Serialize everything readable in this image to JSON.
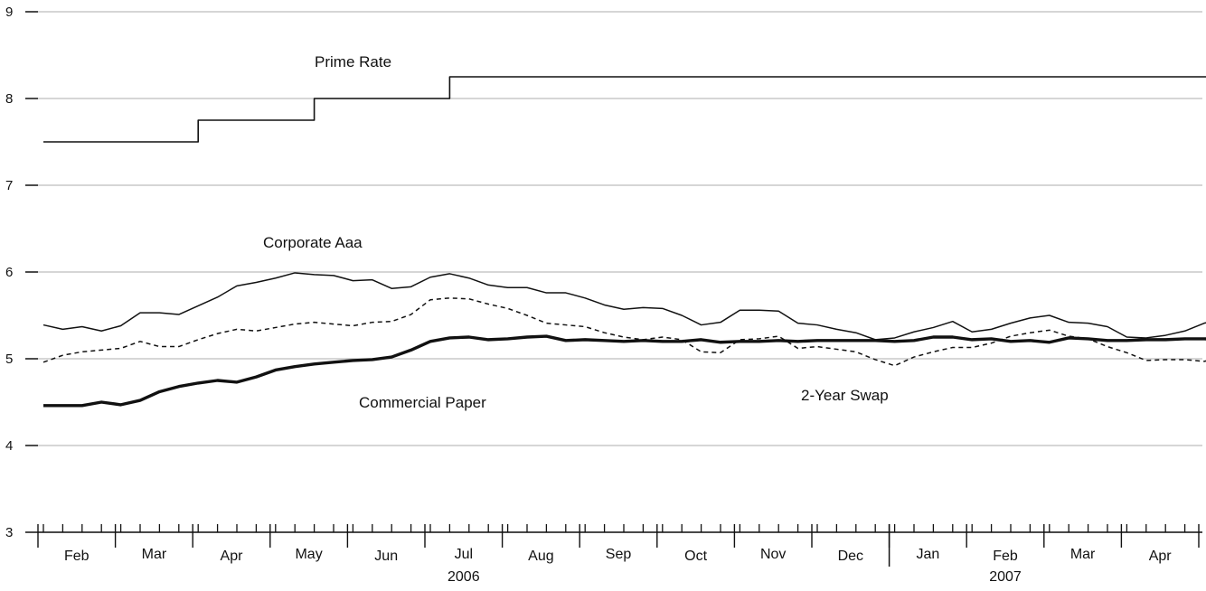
{
  "chart_data": {
    "type": "line",
    "title": "",
    "xlabel": "",
    "ylabel": "",
    "ylim": [
      3,
      9
    ],
    "yticks": [
      3,
      4,
      5,
      6,
      7,
      8,
      9
    ],
    "grid": "horizontal",
    "x_unit": "week",
    "months": [
      {
        "label": "Feb",
        "year_label": ""
      },
      {
        "label": "Mar",
        "year_label": ""
      },
      {
        "label": "Apr",
        "year_label": ""
      },
      {
        "label": "May",
        "year_label": ""
      },
      {
        "label": "Jun",
        "year_label": ""
      },
      {
        "label": "Jul",
        "year_label": "2006"
      },
      {
        "label": "Aug",
        "year_label": ""
      },
      {
        "label": "Sep",
        "year_label": ""
      },
      {
        "label": "Oct",
        "year_label": ""
      },
      {
        "label": "Nov",
        "year_label": ""
      },
      {
        "label": "Dec",
        "year_label": ""
      },
      {
        "label": "Jan",
        "year_label": ""
      },
      {
        "label": "Feb",
        "year_label": "2007"
      },
      {
        "label": "Mar",
        "year_label": ""
      },
      {
        "label": "Apr",
        "year_label": ""
      }
    ],
    "years": [
      "2006",
      "2007"
    ],
    "series": [
      {
        "name": "Prime Rate",
        "style": "step",
        "color": "#111111",
        "values": [
          7.5,
          7.5,
          7.5,
          7.5,
          7.5,
          7.5,
          7.5,
          7.5,
          7.75,
          7.75,
          7.75,
          7.75,
          7.75,
          7.75,
          8.0,
          8.0,
          8.0,
          8.0,
          8.0,
          8.0,
          8.0,
          8.25,
          8.25,
          8.25,
          8.25,
          8.25,
          8.25,
          8.25,
          8.25,
          8.25,
          8.25,
          8.25,
          8.25,
          8.25,
          8.25,
          8.25,
          8.25,
          8.25,
          8.25,
          8.25,
          8.25,
          8.25,
          8.25,
          8.25,
          8.25,
          8.25,
          8.25,
          8.25,
          8.25,
          8.25,
          8.25,
          8.25,
          8.25,
          8.25,
          8.25,
          8.25,
          8.25,
          8.25,
          8.25,
          8.25,
          8.25,
          8.25
        ]
      },
      {
        "name": "Corporate Aaa",
        "style": "thin",
        "color": "#111111",
        "values": [
          5.39,
          5.34,
          5.37,
          5.32,
          5.38,
          5.53,
          5.53,
          5.51,
          5.61,
          5.71,
          5.84,
          5.88,
          5.93,
          5.99,
          5.97,
          5.96,
          5.9,
          5.91,
          5.81,
          5.83,
          5.94,
          5.98,
          5.93,
          5.85,
          5.82,
          5.82,
          5.76,
          5.76,
          5.7,
          5.62,
          5.57,
          5.59,
          5.58,
          5.5,
          5.39,
          5.42,
          5.56,
          5.56,
          5.55,
          5.41,
          5.39,
          5.34,
          5.3,
          5.22,
          5.24,
          5.31,
          5.36,
          5.43,
          5.31,
          5.34,
          5.41,
          5.47,
          5.5,
          5.42,
          5.41,
          5.37,
          5.25,
          5.24,
          5.27,
          5.32,
          5.41,
          5.46
        ]
      },
      {
        "name": "2-Year Swap",
        "style": "dashed",
        "color": "#111111",
        "values": [
          4.96,
          5.04,
          5.08,
          5.1,
          5.12,
          5.2,
          5.14,
          5.14,
          5.22,
          5.29,
          5.34,
          5.32,
          5.36,
          5.4,
          5.42,
          5.4,
          5.38,
          5.42,
          5.43,
          5.51,
          5.68,
          5.7,
          5.69,
          5.63,
          5.58,
          5.5,
          5.41,
          5.39,
          5.37,
          5.3,
          5.25,
          5.22,
          5.25,
          5.22,
          5.08,
          5.07,
          5.22,
          5.23,
          5.26,
          5.12,
          5.14,
          5.11,
          5.08,
          4.99,
          4.92,
          5.02,
          5.08,
          5.13,
          5.13,
          5.18,
          5.26,
          5.3,
          5.33,
          5.26,
          5.23,
          5.14,
          5.07,
          4.98,
          4.99,
          4.99,
          4.97,
          5.02
        ]
      },
      {
        "name": "Commercial Paper",
        "style": "thick",
        "color": "#111111",
        "values": [
          4.46,
          4.46,
          4.46,
          4.5,
          4.47,
          4.52,
          4.62,
          4.68,
          4.72,
          4.75,
          4.73,
          4.79,
          4.87,
          4.91,
          4.94,
          4.96,
          4.98,
          4.99,
          5.02,
          5.1,
          5.2,
          5.24,
          5.25,
          5.22,
          5.23,
          5.25,
          5.26,
          5.21,
          5.22,
          5.21,
          5.2,
          5.21,
          5.2,
          5.2,
          5.22,
          5.19,
          5.2,
          5.2,
          5.21,
          5.2,
          5.21,
          5.21,
          5.21,
          5.21,
          5.2,
          5.21,
          5.25,
          5.25,
          5.22,
          5.23,
          5.2,
          5.21,
          5.19,
          5.24,
          5.23,
          5.21,
          5.21,
          5.22,
          5.22,
          5.23,
          5.23,
          5.22
        ]
      }
    ]
  }
}
